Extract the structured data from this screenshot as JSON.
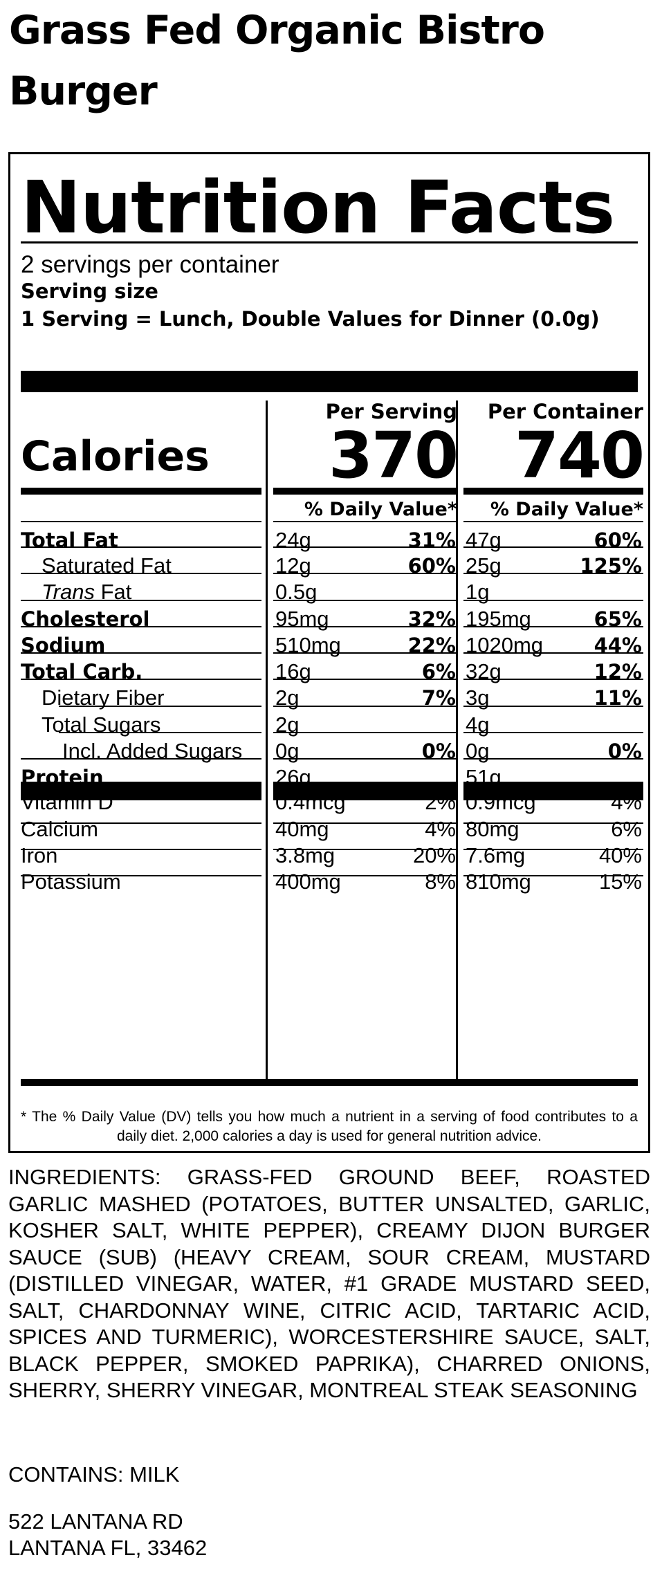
{
  "product_title": "Grass Fed Organic Bistro Burger",
  "label": {
    "heading": "Nutrition Facts",
    "servings_per_container": "2 servings per container",
    "serving_size_label": "Serving size",
    "serving_size_value": "1 Serving = Lunch, Double Values for Dinner (0.0g)",
    "per_serving_header": "Per Serving",
    "per_container_header": "Per Container",
    "calories_label": "Calories",
    "calories_per_serving": "370",
    "calories_per_container": "740",
    "daily_value_header": "% Daily Value*",
    "nutrients": [
      {
        "name": "Total Fat",
        "amt1": "24g",
        "pct1": "31%",
        "amt2": "47g",
        "pct2": "60%"
      },
      {
        "name": "Saturated Fat",
        "amt1": "12g",
        "pct1": "60%",
        "amt2": "25g",
        "pct2": "125%"
      },
      {
        "name_italic": "Trans",
        "name_rest": " Fat",
        "amt1": "0.5g",
        "amt2": "1g"
      },
      {
        "name": "Cholesterol",
        "amt1": "95mg",
        "pct1": "32%",
        "amt2": "195mg",
        "pct2": "65%"
      },
      {
        "name": "Sodium",
        "amt1": "510mg",
        "pct1": "22%",
        "amt2": "1020mg",
        "pct2": "44%"
      },
      {
        "name": "Total Carb.",
        "amt1": "16g",
        "pct1": "6%",
        "amt2": "32g",
        "pct2": "12%"
      },
      {
        "name": "Dietary Fiber",
        "amt1": "2g",
        "pct1": "7%",
        "amt2": "3g",
        "pct2": "11%"
      },
      {
        "name": "Total Sugars",
        "amt1": "2g",
        "amt2": "4g"
      },
      {
        "name": "Incl. Added Sugars",
        "amt1": "0g",
        "pct1": "0%",
        "amt2": "0g",
        "pct2": "0%"
      },
      {
        "name": "Protein",
        "amt1": "26g",
        "amt2": "51g"
      }
    ],
    "vitamins": [
      {
        "name": "Vitamin D",
        "amt1": "0.4mcg",
        "pct1": "2%",
        "amt2": "0.9mcg",
        "pct2": "4%"
      },
      {
        "name": "Calcium",
        "amt1": "40mg",
        "pct1": "4%",
        "amt2": "80mg",
        "pct2": "6%"
      },
      {
        "name": "Iron",
        "amt1": "3.8mg",
        "pct1": "20%",
        "amt2": "7.6mg",
        "pct2": "40%"
      },
      {
        "name": "Potassium",
        "amt1": "400mg",
        "pct1": "8%",
        "amt2": "810mg",
        "pct2": "15%"
      }
    ],
    "footnote": "* The % Daily Value (DV) tells you how much a nutrient in a serving of food contributes to a daily diet. 2,000 calories a day is used for general nutrition advice."
  },
  "ingredients": "INGREDIENTS: GRASS-FED GROUND BEEF, ROASTED GARLIC MASHED (POTATOES, BUTTER UNSALTED, GARLIC, KOSHER SALT, WHITE PEPPER), CREAMY DIJON BURGER SAUCE (SUB) (HEAVY CREAM, SOUR CREAM, MUSTARD (DISTILLED VINEGAR, WATER, #1 GRADE MUSTARD SEED, SALT, CHARDONNAY WINE, CITRIC ACID, TARTARIC ACID, SPICES AND TURMERIC), WORCESTERSHIRE SAUCE, SALT, BLACK PEPPER, SMOKED PAPRIKA), CHARRED ONIONS, SHERRY, SHERRY VINEGAR, MONTREAL STEAK SEASONING",
  "contains": "CONTAINS: MILK",
  "address": {
    "line1": "522 LANTANA RD",
    "line2": "LANTANA FL, 33462"
  }
}
